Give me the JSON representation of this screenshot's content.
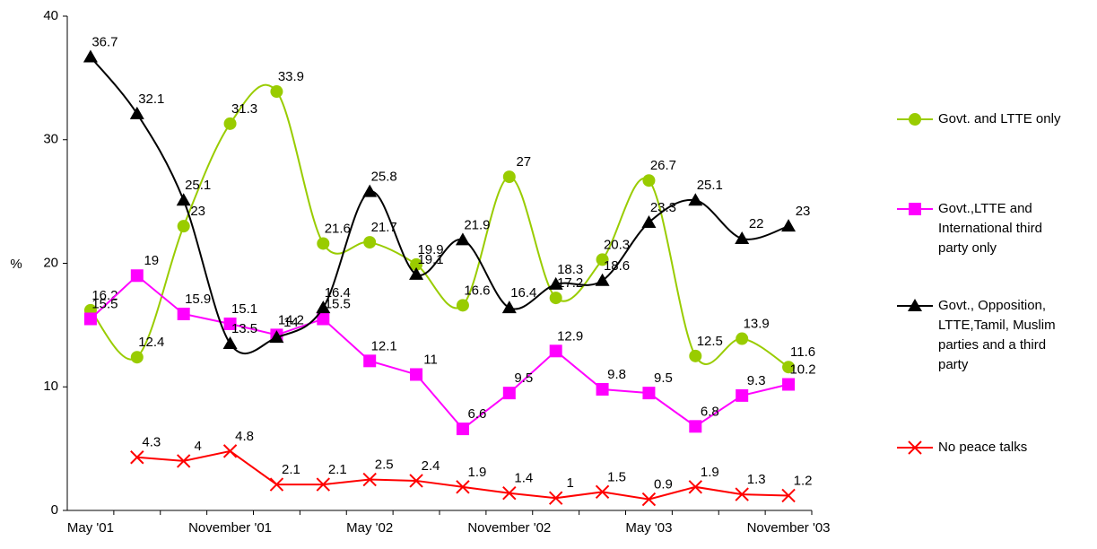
{
  "chart_data": {
    "type": "line",
    "y_label": "%",
    "categories": [
      "May '01",
      null,
      null,
      "November '01",
      null,
      null,
      "May '02",
      null,
      null,
      "November '02",
      null,
      null,
      "May '03",
      null,
      null,
      "November '03"
    ],
    "ylim": [
      0,
      40
    ],
    "yticks": [
      0,
      10,
      20,
      30,
      40
    ],
    "series": [
      {
        "name": "Govt. and LTTE only",
        "color": "#99cc00",
        "marker": "circle",
        "smooth": true,
        "values": [
          16.2,
          12.4,
          23,
          31.3,
          33.9,
          21.6,
          21.7,
          19.9,
          16.6,
          27,
          17.2,
          20.3,
          26.7,
          12.5,
          13.9,
          11.6
        ]
      },
      {
        "name": "Govt.,LTTE and International third party only",
        "color": "#ff00ff",
        "marker": "square",
        "smooth": false,
        "values": [
          15.5,
          19,
          15.9,
          15.1,
          14.2,
          15.5,
          12.1,
          11,
          6.6,
          9.5,
          12.9,
          9.8,
          9.5,
          6.8,
          9.3,
          10.2
        ]
      },
      {
        "name": "Govt., Opposition, LTTE,Tamil, Muslim parties and a third party",
        "color": "#000000",
        "marker": "triangle",
        "smooth": true,
        "values": [
          36.7,
          32.1,
          25.1,
          13.5,
          14,
          16.4,
          25.8,
          19.1,
          21.9,
          16.4,
          18.3,
          18.6,
          23.3,
          25.1,
          22,
          23
        ]
      },
      {
        "name": "No peace talks",
        "color": "#ff0000",
        "marker": "x",
        "smooth": false,
        "values": [
          null,
          4.3,
          4,
          4.8,
          2.1,
          2.1,
          2.5,
          2.4,
          1.9,
          1.4,
          1,
          1.5,
          0.9,
          1.9,
          1.3,
          1.2
        ]
      }
    ]
  }
}
